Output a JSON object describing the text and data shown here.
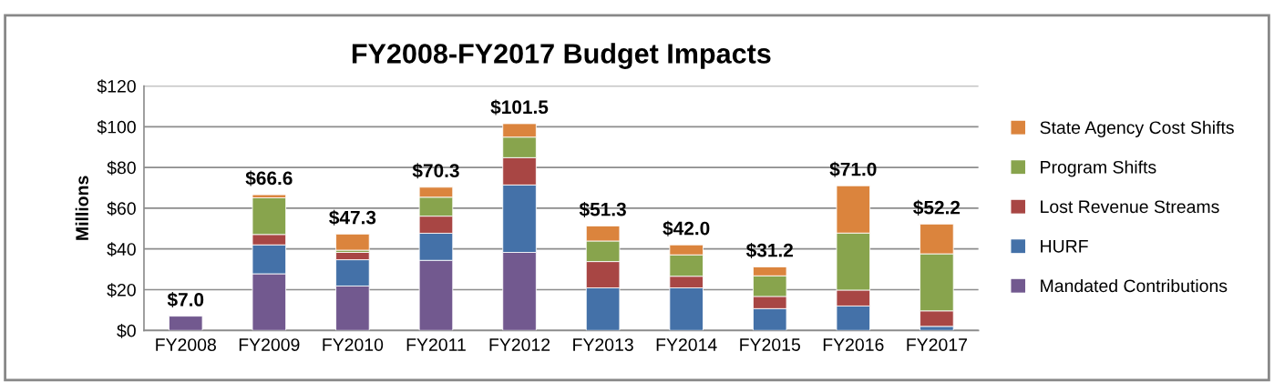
{
  "chart_data": {
    "type": "bar",
    "title": "FY2008-FY2017 Budget Impacts",
    "ylabel": "Millions",
    "stacked": true,
    "categories": [
      "FY2008",
      "FY2009",
      "FY2010",
      "FY2011",
      "FY2012",
      "FY2013",
      "FY2014",
      "FY2015",
      "FY2016",
      "FY2017"
    ],
    "series": [
      {
        "name": "Mandated Contributions",
        "color": "#72598f",
        "values": [
          7.0,
          27.8,
          21.8,
          34.4,
          38.3,
          null,
          null,
          null,
          null,
          null
        ]
      },
      {
        "name": "HURF",
        "color": "#4471a8",
        "values": [
          null,
          14.2,
          12.9,
          13.3,
          33.1,
          20.9,
          20.9,
          10.7,
          12.0,
          2.0
        ]
      },
      {
        "name": "Lost Revenue Streams",
        "color": "#a84644",
        "values": [
          null,
          5.1,
          3.6,
          8.4,
          13.4,
          12.9,
          5.7,
          6.0,
          7.8,
          7.6
        ]
      },
      {
        "name": "Program Shifts",
        "color": "#88a44d",
        "values": [
          null,
          18.0,
          1.1,
          9.3,
          10.1,
          10.1,
          10.5,
          10.1,
          28.0,
          28.0
        ]
      },
      {
        "name": "State Agency Cost Shifts",
        "color": "#db843d",
        "values": [
          null,
          1.5,
          7.9,
          4.9,
          6.6,
          7.4,
          4.9,
          4.4,
          23.2,
          14.6
        ]
      }
    ],
    "totals": [
      "$7.0",
      "$66.6",
      "$47.3",
      "$70.3",
      "$101.5",
      "$51.3",
      "$42.0",
      "$31.2",
      "$71.0",
      "$52.2"
    ],
    "ylim": [
      0,
      120
    ],
    "yticks": [
      {
        "value": 0,
        "label": "$0"
      },
      {
        "value": 20,
        "label": "$20"
      },
      {
        "value": 40,
        "label": "$40"
      },
      {
        "value": 60,
        "label": "$60"
      },
      {
        "value": 80,
        "label": "$80"
      },
      {
        "value": 100,
        "label": "$100"
      },
      {
        "value": 120,
        "label": "$120"
      }
    ],
    "grid": "y",
    "legend": "right"
  }
}
